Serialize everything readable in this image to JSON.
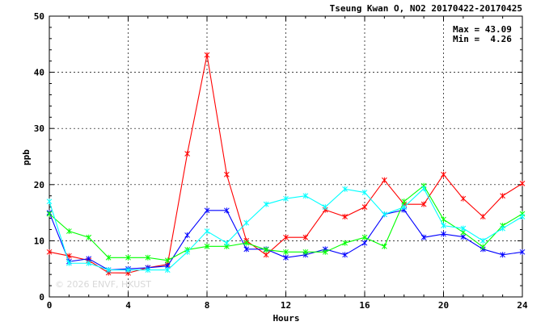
{
  "chart_data": {
    "type": "line",
    "title": "Tseung Kwan O, NO2 20170422-20170425",
    "xlabel": "Hours",
    "ylabel": "ppb",
    "xlim": [
      0,
      24
    ],
    "ylim": [
      0,
      50
    ],
    "x_ticks": [
      0,
      4,
      8,
      12,
      16,
      20,
      24
    ],
    "y_ticks": [
      0,
      10,
      20,
      30,
      40,
      50
    ],
    "grid": true,
    "stats": {
      "max_line": "Max = 43.09",
      "min_line": "Min =  4.26"
    },
    "watermark": "© 2026  ENVF, HKUST",
    "x": [
      0,
      1,
      2,
      3,
      4,
      5,
      6,
      7,
      8,
      9,
      10,
      11,
      12,
      13,
      14,
      15,
      16,
      17,
      18,
      19,
      20,
      21,
      22,
      23,
      24
    ],
    "series": [
      {
        "color": "#ff0000",
        "values": [
          8.0,
          7.3,
          6.5,
          4.3,
          4.26,
          5.2,
          5.8,
          25.5,
          43.09,
          21.8,
          10.0,
          7.5,
          10.6,
          10.6,
          15.5,
          14.3,
          16.0,
          20.8,
          16.5,
          16.5,
          21.8,
          17.5,
          14.3,
          18.0,
          20.2
        ]
      },
      {
        "color": "#0000ff",
        "values": [
          15.0,
          6.3,
          6.8,
          4.8,
          5.0,
          5.2,
          5.5,
          11.0,
          15.4,
          15.4,
          8.5,
          8.5,
          7.0,
          7.5,
          8.5,
          7.5,
          9.6,
          14.7,
          15.5,
          10.6,
          11.2,
          10.7,
          8.5,
          7.5,
          8.0
        ]
      },
      {
        "color": "#00ff00",
        "values": [
          14.8,
          11.7,
          10.6,
          7.0,
          7.0,
          7.0,
          6.5,
          8.4,
          9.0,
          9.0,
          9.6,
          8.4,
          8.0,
          8.0,
          8.0,
          9.6,
          10.6,
          9.0,
          17.0,
          19.8,
          13.8,
          11.5,
          8.9,
          12.7,
          14.8
        ]
      },
      {
        "color": "#00ffff",
        "values": [
          17.0,
          6.0,
          6.0,
          4.8,
          4.8,
          4.8,
          4.8,
          8.0,
          11.7,
          9.6,
          13.2,
          16.5,
          17.5,
          18.0,
          16.0,
          19.2,
          18.6,
          14.7,
          16.0,
          19.3,
          12.7,
          12.2,
          10.0,
          12.2,
          14.3
        ]
      }
    ]
  }
}
